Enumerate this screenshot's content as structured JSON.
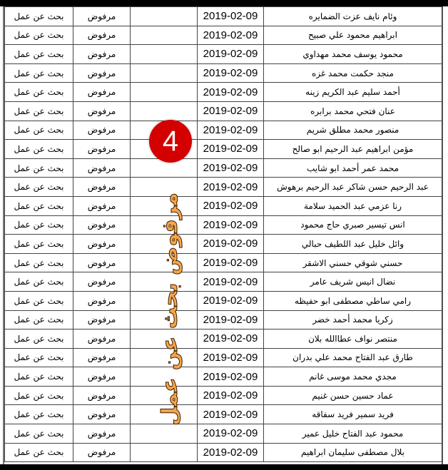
{
  "rows": [
    {
      "name": "وئام نايف عزت الضمايره",
      "date": "2019-02-09",
      "status": "مرفوض",
      "reason": "بحث عن عمل"
    },
    {
      "name": "ابراهيم محمود علي صبيح",
      "date": "2019-02-09",
      "status": "مرفوض",
      "reason": "بحث عن عمل"
    },
    {
      "name": "محمود يوسف محمد مهداوي",
      "date": "2019-02-09",
      "status": "مرفوض",
      "reason": "بحث عن عمل"
    },
    {
      "name": "منجد حكمت محمد غزه",
      "date": "2019-02-09",
      "status": "مرفوض",
      "reason": "بحث عن عمل"
    },
    {
      "name": "أحمد سليم عبد الكريم زينه",
      "date": "2019-02-09",
      "status": "مرفوض",
      "reason": "بحث عن عمل"
    },
    {
      "name": "عنان فتحي محمد برابره",
      "date": "2019-02-09",
      "status": "مرفوض",
      "reason": "بحث عن عمل"
    },
    {
      "name": "منصور محمد مطلق شريم",
      "date": "2019-02-09",
      "status": "مرفوض",
      "reason": "بحث عن عمل"
    },
    {
      "name": "مؤمن ابراهيم عبد الرحيم ابو صالح",
      "date": "2019-02-09",
      "status": "مرفوض",
      "reason": "بحث عن عمل"
    },
    {
      "name": "محمد عمر أحمد ابو شايب",
      "date": "2019-02-09",
      "status": "مرفوض",
      "reason": "بحث عن عمل"
    },
    {
      "name": "عبد الرحيم حسن شاكر عبد الرحيم برهوش",
      "date": "2019-02-09",
      "status": "مرفوض",
      "reason": "بحث عن عمل"
    },
    {
      "name": "رنا عزمي عبد الحميد سلامة",
      "date": "2019-02-09",
      "status": "مرفوض",
      "reason": "بحث عن عمل"
    },
    {
      "name": "انس تيسير صبري حاج محمود",
      "date": "2019-02-09",
      "status": "مرفوض",
      "reason": "بحث عن عمل"
    },
    {
      "name": "وائل خليل عبد اللطيف حبالي",
      "date": "2019-02-09",
      "status": "مرفوض",
      "reason": "بحث عن عمل"
    },
    {
      "name": "حسني شوقي حسني الاشقر",
      "date": "2019-02-09",
      "status": "مرفوض",
      "reason": "بحث عن عمل"
    },
    {
      "name": "نضال انيس شريف عامر",
      "date": "2019-02-09",
      "status": "مرفوض",
      "reason": "بحث عن عمل"
    },
    {
      "name": "رامي ساطي مصطفى ابو حفيظه",
      "date": "2019-02-09",
      "status": "مرفوض",
      "reason": "بحث عن عمل"
    },
    {
      "name": "زكريا محمد أحمد خضر",
      "date": "2019-02-09",
      "status": "مرفوض",
      "reason": "بحث عن عمل"
    },
    {
      "name": "منتصر نواف عطاالله بلان",
      "date": "2019-02-09",
      "status": "مرفوض",
      "reason": "بحث عن عمل"
    },
    {
      "name": "طارق عبد الفتاح محمد علي بدران",
      "date": "2019-02-09",
      "status": "مرفوض",
      "reason": "بحث عن عمل"
    },
    {
      "name": "مجدي محمد موسى غانم",
      "date": "2019-02-09",
      "status": "مرفوض",
      "reason": "بحث عن عمل"
    },
    {
      "name": "عماد حسين حسن غنيم",
      "date": "2019-02-09",
      "status": "مرفوض",
      "reason": "بحث عن عمل"
    },
    {
      "name": "فريد سمير فريد سفاقه",
      "date": "2019-02-09",
      "status": "مرفوض",
      "reason": "بحث عن عمل"
    },
    {
      "name": "محمود عبد الفتاح خليل عمير",
      "date": "2019-02-09",
      "status": "مرفوض",
      "reason": "بحث عن عمل"
    },
    {
      "name": "بلال مصطفى سليمان ابراهيم",
      "date": "2019-02-09",
      "status": "مرفوض",
      "reason": "بحث عن عمل"
    }
  ],
  "overlay": {
    "stamp_text": "مرفوض بحث عن عمل",
    "badge_number": "4",
    "stamp_color": "#f6a54a",
    "badge_color": "#d40000"
  }
}
